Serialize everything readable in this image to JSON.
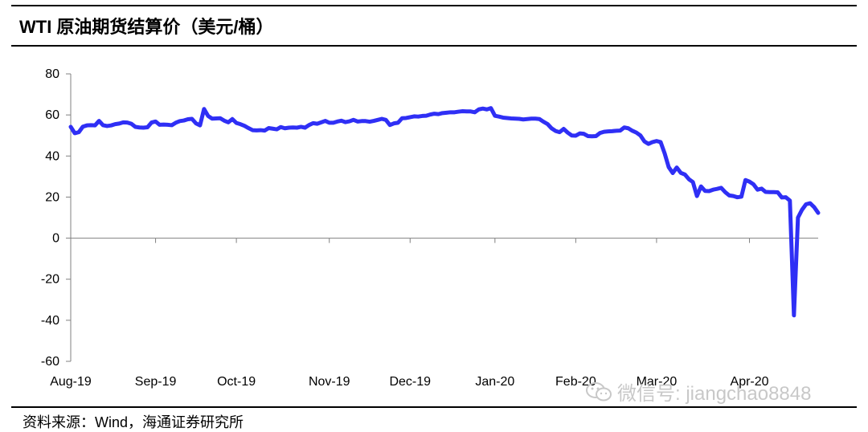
{
  "header": {
    "title": "WTI 原油期货结算价（美元/桶）"
  },
  "footer": {
    "source": "资料来源：Wind，海通证券研究所"
  },
  "watermark": {
    "text": "微信号: jiangchao8848",
    "icon": "wechat-icon"
  },
  "chart_data": {
    "type": "line",
    "title": "WTI 原油期货结算价（美元/桶）",
    "xlabel": "",
    "ylabel": "",
    "ylim": [
      -60,
      80
    ],
    "yticks": [
      -60,
      -40,
      -20,
      0,
      20,
      40,
      60,
      80
    ],
    "grid": false,
    "legend": "none",
    "line_color": "#2f2ff5",
    "xticks": [
      "Aug-19",
      "Sep-19",
      "Oct-19",
      "Nov-19",
      "Dec-19",
      "Jan-20",
      "Feb-20",
      "Mar-20",
      "Apr-20"
    ],
    "xtick_index": [
      0,
      21,
      41,
      64,
      84,
      105,
      125,
      145,
      168
    ],
    "series": [
      {
        "values": [
          54.2,
          51.1,
          51.6,
          54.3,
          54.9,
          55.0,
          54.9,
          57.1,
          55.0,
          54.6,
          54.9,
          55.5,
          55.8,
          56.4,
          56.3,
          55.7,
          54.2,
          53.9,
          53.8,
          54.0,
          56.3,
          56.8,
          55.2,
          55.3,
          55.2,
          55.0,
          56.2,
          57.0,
          57.3,
          57.9,
          58.1,
          55.9,
          54.9,
          62.9,
          59.5,
          58.2,
          58.3,
          58.4,
          57.2,
          56.4,
          58.0,
          56.1,
          55.5,
          54.7,
          53.6,
          52.6,
          52.5,
          52.6,
          52.4,
          53.6,
          53.3,
          53.0,
          54.1,
          53.5,
          53.8,
          53.9,
          53.8,
          54.2,
          53.8,
          55.1,
          56.0,
          55.7,
          56.4,
          57.1,
          56.2,
          56.2,
          56.8,
          57.2,
          56.5,
          56.9,
          57.6,
          56.8,
          57.0,
          57.0,
          56.7,
          57.1,
          57.6,
          58.1,
          57.6,
          55.1,
          55.9,
          56.2,
          58.4,
          58.5,
          58.9,
          59.3,
          59.2,
          59.5,
          59.6,
          60.2,
          60.6,
          60.4,
          60.9,
          61.1,
          61.3,
          61.3,
          61.6,
          61.8,
          61.7,
          61.7,
          61.3,
          62.7,
          63.1,
          62.7,
          63.3,
          59.6,
          59.2,
          58.7,
          58.5,
          58.3,
          58.2,
          58.1,
          57.8,
          58.0,
          58.2,
          58.2,
          58.0,
          56.7,
          55.6,
          53.5,
          52.2,
          51.6,
          53.2,
          51.4,
          50.0,
          49.9,
          51.0,
          50.8,
          49.7,
          49.6,
          49.7,
          51.2,
          51.8,
          52.0,
          52.1,
          52.3,
          52.4,
          53.9,
          53.5,
          52.3,
          51.4,
          50.0,
          47.1,
          45.9,
          46.8,
          47.3,
          46.8,
          41.3,
          34.6,
          31.7,
          34.4,
          31.8,
          31.0,
          28.7,
          27.3,
          20.5,
          25.2,
          23.0,
          22.9,
          23.6,
          24.0,
          24.5,
          22.4,
          20.8,
          20.5,
          19.9,
          20.2,
          28.3,
          27.5,
          26.2,
          23.6,
          24.1,
          22.5,
          22.4,
          22.4,
          22.3,
          19.8,
          19.9,
          18.3,
          -37.6,
          10.0,
          13.8,
          16.5,
          17.0,
          15.1,
          12.3
        ]
      }
    ]
  }
}
